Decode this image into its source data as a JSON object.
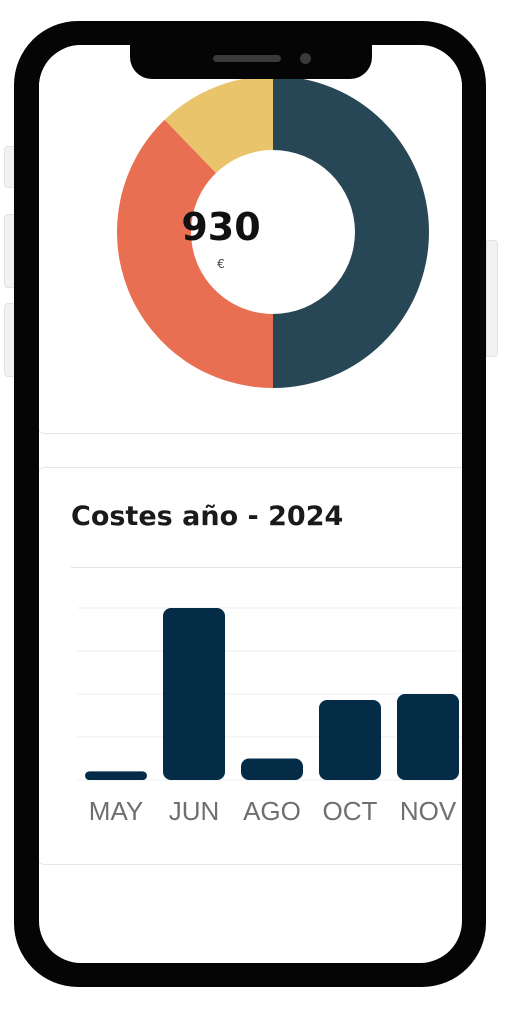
{
  "donut": {
    "total": "930",
    "unit": "€",
    "segments": [
      {
        "value": 45,
        "color": "#284756"
      },
      {
        "value": 34,
        "color": "#e86f51"
      },
      {
        "value": 11,
        "color": "#e9c46a"
      }
    ]
  },
  "costs_card": {
    "title": "Costes año - 2024"
  },
  "chart_data": {
    "type": "bar",
    "categories": [
      "MAY",
      "JUN",
      "AGO",
      "OCT",
      "NOV"
    ],
    "values": [
      10,
      200,
      25,
      93,
      100
    ],
    "ylim": [
      0,
      200
    ],
    "grid": true,
    "color": "#042c46"
  }
}
